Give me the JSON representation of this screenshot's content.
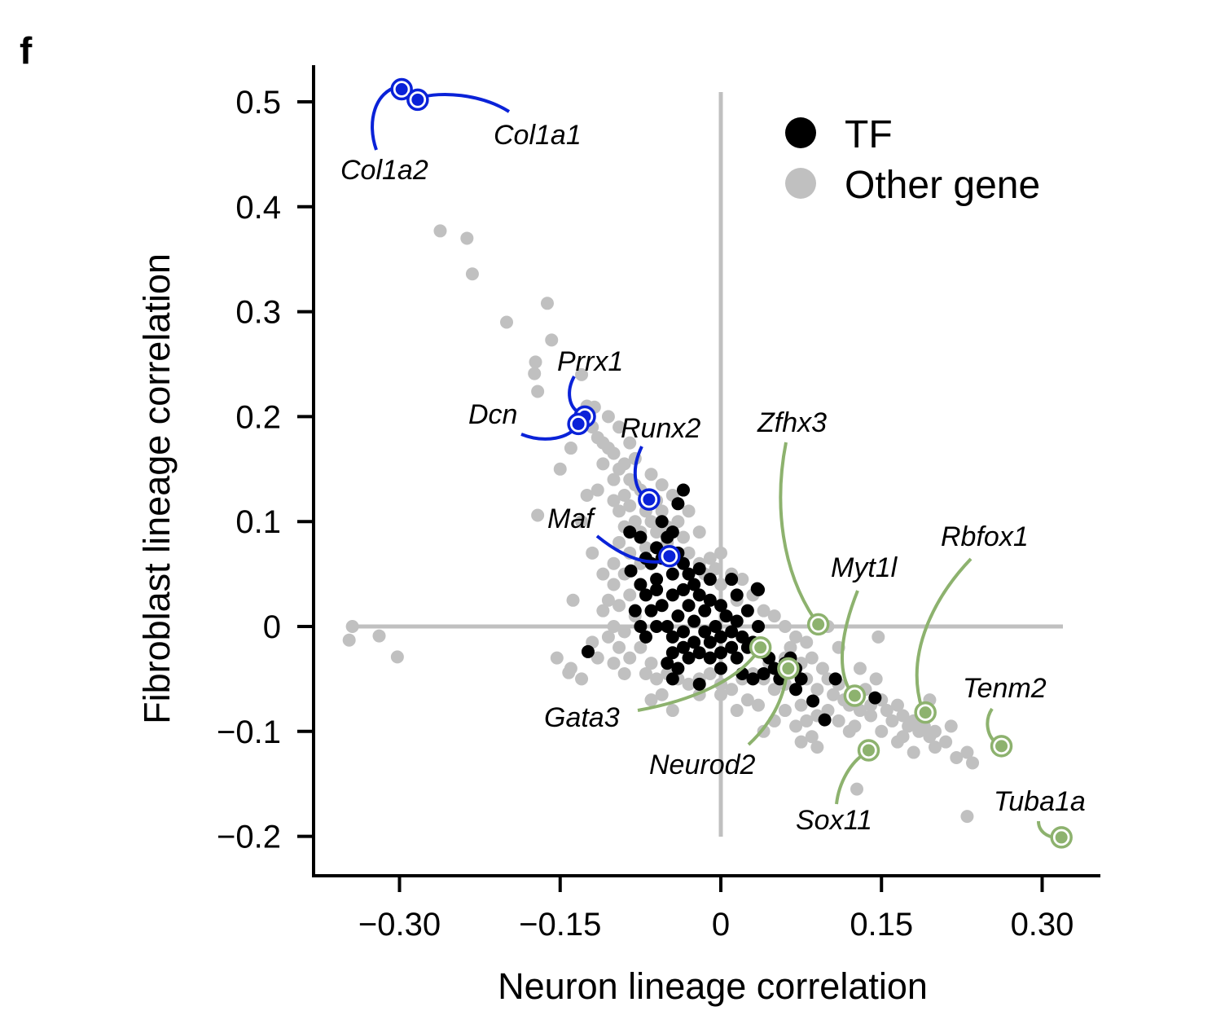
{
  "panel_letter": "f",
  "chart_data": {
    "type": "scatter",
    "xlabel": "Neuron lineage correlation",
    "ylabel": "Fibroblast lineage correlation",
    "xlim": [
      -0.365,
      0.355
    ],
    "ylim": [
      -0.235,
      0.535
    ],
    "xticks": [
      -0.3,
      -0.15,
      0,
      0.15,
      0.3
    ],
    "xtick_labels": [
      "−0.30",
      "−0.15",
      "0",
      "0.15",
      "0.30"
    ],
    "yticks": [
      0.5,
      0.4,
      0.3,
      0.2,
      0.1,
      0,
      -0.1,
      -0.2
    ],
    "ytick_labels": [
      "0.5",
      "0.4",
      "0.3",
      "0.2",
      "0.1",
      "0",
      "−0.1",
      "−0.2"
    ],
    "reference_lines": {
      "x": 0,
      "y": 0
    },
    "grid": false,
    "legend": {
      "placement": "top-right",
      "entries": [
        {
          "label": "TF",
          "color": "#000000"
        },
        {
          "label": "Other gene",
          "color": "#c0c0c0"
        }
      ]
    },
    "colors": {
      "tf": "#000000",
      "other": "#c0c0c0",
      "fibroblast_highlight": "#0a22d8",
      "neuron_highlight": "#8db26e"
    },
    "series": [
      {
        "name": "Other gene",
        "points": [
          [
            -0.262,
            0.377
          ],
          [
            -0.237,
            0.37
          ],
          [
            -0.232,
            0.336
          ],
          [
            -0.2,
            0.29
          ],
          [
            -0.162,
            0.308
          ],
          [
            -0.158,
            0.273
          ],
          [
            -0.173,
            0.252
          ],
          [
            -0.174,
            0.241
          ],
          [
            -0.171,
            0.224
          ],
          [
            -0.13,
            0.24
          ],
          [
            -0.118,
            0.209
          ],
          [
            -0.171,
            0.106
          ],
          [
            -0.138,
            0.025
          ],
          [
            -0.344,
            0.0
          ],
          [
            -0.347,
            -0.013
          ],
          [
            -0.319,
            -0.009
          ],
          [
            -0.302,
            -0.029
          ],
          [
            -0.153,
            -0.03
          ],
          [
            -0.142,
            -0.044
          ],
          [
            0.147,
            -0.01
          ],
          [
            0.127,
            -0.155
          ],
          [
            0.23,
            -0.181
          ],
          [
            -0.125,
            0.21
          ],
          [
            -0.12,
            0.19
          ],
          [
            -0.115,
            0.18
          ],
          [
            -0.11,
            0.175
          ],
          [
            -0.105,
            0.17
          ],
          [
            -0.1,
            0.165
          ],
          [
            -0.11,
            0.155
          ],
          [
            -0.095,
            0.15
          ],
          [
            -0.09,
            0.155
          ],
          [
            -0.1,
            0.14
          ],
          [
            -0.085,
            0.14
          ],
          [
            -0.08,
            0.135
          ],
          [
            -0.09,
            0.125
          ],
          [
            -0.075,
            0.13
          ],
          [
            -0.1,
            0.12
          ],
          [
            -0.095,
            0.11
          ],
          [
            -0.085,
            0.115
          ],
          [
            -0.07,
            0.11
          ],
          [
            -0.06,
            0.12
          ],
          [
            -0.055,
            0.11
          ],
          [
            -0.065,
            0.1
          ],
          [
            -0.08,
            0.1
          ],
          [
            -0.09,
            0.095
          ],
          [
            -0.075,
            0.09
          ],
          [
            -0.06,
            0.09
          ],
          [
            -0.05,
            0.095
          ],
          [
            -0.04,
            0.1
          ],
          [
            -0.035,
            0.085
          ],
          [
            -0.05,
            0.08
          ],
          [
            -0.07,
            0.075
          ],
          [
            -0.085,
            0.07
          ],
          [
            -0.095,
            0.08
          ],
          [
            -0.1,
            0.06
          ],
          [
            -0.09,
            0.05
          ],
          [
            -0.075,
            0.06
          ],
          [
            -0.03,
            0.07
          ],
          [
            -0.02,
            0.06
          ],
          [
            -0.015,
            0.05
          ],
          [
            -0.01,
            0.065
          ],
          [
            -0.005,
            0.055
          ],
          [
            0.0,
            0.04
          ],
          [
            0.01,
            0.05
          ],
          [
            0.02,
            0.045
          ],
          [
            0.03,
            0.03
          ],
          [
            -0.1,
            0.04
          ],
          [
            -0.105,
            0.025
          ],
          [
            -0.11,
            0.015
          ],
          [
            -0.095,
            0.02
          ],
          [
            -0.085,
            0.03
          ],
          [
            -0.1,
            0.0
          ],
          [
            -0.09,
            -0.005
          ],
          [
            -0.08,
            0.01
          ],
          [
            -0.105,
            -0.01
          ],
          [
            -0.095,
            -0.02
          ],
          [
            -0.085,
            -0.03
          ],
          [
            -0.075,
            -0.02
          ],
          [
            -0.065,
            -0.035
          ],
          [
            -0.1,
            -0.035
          ],
          [
            -0.09,
            -0.045
          ],
          [
            -0.07,
            -0.045
          ],
          [
            -0.06,
            -0.05
          ],
          [
            -0.05,
            -0.045
          ],
          [
            -0.12,
            -0.015
          ],
          [
            -0.115,
            -0.03
          ],
          [
            -0.04,
            -0.05
          ],
          [
            -0.03,
            -0.055
          ],
          [
            -0.02,
            -0.05
          ],
          [
            -0.01,
            -0.045
          ],
          [
            0.0,
            -0.055
          ],
          [
            0.01,
            -0.06
          ],
          [
            0.02,
            -0.05
          ],
          [
            0.03,
            -0.045
          ],
          [
            0.04,
            -0.05
          ],
          [
            0.05,
            -0.06
          ],
          [
            0.06,
            -0.055
          ],
          [
            0.07,
            -0.06
          ],
          [
            0.08,
            -0.05
          ],
          [
            0.09,
            -0.06
          ],
          [
            0.045,
            -0.035
          ],
          [
            0.06,
            -0.03
          ],
          [
            0.075,
            -0.035
          ],
          [
            0.085,
            -0.03
          ],
          [
            0.095,
            -0.04
          ],
          [
            0.1,
            -0.05
          ],
          [
            0.105,
            -0.065
          ],
          [
            0.11,
            -0.055
          ],
          [
            0.115,
            -0.07
          ],
          [
            0.1,
            -0.08
          ],
          [
            0.09,
            -0.085
          ],
          [
            0.08,
            -0.09
          ],
          [
            0.07,
            -0.095
          ],
          [
            0.075,
            -0.075
          ],
          [
            0.12,
            -0.075
          ],
          [
            0.13,
            -0.08
          ],
          [
            0.14,
            -0.085
          ],
          [
            0.135,
            -0.06
          ],
          [
            0.145,
            -0.05
          ],
          [
            0.15,
            -0.07
          ],
          [
            0.155,
            -0.08
          ],
          [
            0.16,
            -0.09
          ],
          [
            0.165,
            -0.075
          ],
          [
            0.17,
            -0.085
          ],
          [
            0.175,
            -0.095
          ],
          [
            0.18,
            -0.09
          ],
          [
            0.185,
            -0.1
          ],
          [
            0.19,
            -0.095
          ],
          [
            0.195,
            -0.105
          ],
          [
            0.2,
            -0.1
          ],
          [
            0.195,
            -0.07
          ],
          [
            0.2,
            -0.115
          ],
          [
            0.21,
            -0.11
          ],
          [
            0.22,
            -0.125
          ],
          [
            0.23,
            -0.12
          ],
          [
            0.235,
            -0.13
          ],
          [
            0.215,
            -0.095
          ],
          [
            0.12,
            -0.1
          ],
          [
            0.125,
            -0.095
          ],
          [
            0.11,
            -0.09
          ],
          [
            0.15,
            -0.1
          ],
          [
            0.165,
            -0.11
          ],
          [
            0.025,
            -0.07
          ],
          [
            0.035,
            -0.075
          ],
          [
            0.015,
            -0.08
          ],
          [
            0.0,
            -0.065
          ],
          [
            -0.055,
            -0.065
          ],
          [
            -0.045,
            -0.08
          ],
          [
            -0.065,
            -0.07
          ],
          [
            0.05,
            0.01
          ],
          [
            0.06,
            0.0
          ],
          [
            0.04,
            0.015
          ],
          [
            0.07,
            -0.01
          ],
          [
            0.08,
            -0.015
          ],
          [
            0.065,
            -0.02
          ],
          [
            -0.11,
            0.05
          ],
          [
            -0.12,
            0.07
          ],
          [
            -0.13,
            0.1
          ],
          [
            -0.125,
            0.125
          ],
          [
            -0.115,
            0.13
          ],
          [
            -0.105,
            0.2
          ],
          [
            -0.095,
            0.19
          ],
          [
            -0.085,
            0.175
          ],
          [
            -0.08,
            0.16
          ],
          [
            -0.14,
            0.17
          ],
          [
            -0.15,
            0.15
          ],
          [
            -0.065,
            0.145
          ],
          [
            -0.055,
            0.135
          ],
          [
            -0.045,
            0.125
          ],
          [
            -0.03,
            0.11
          ],
          [
            -0.02,
            0.09
          ],
          [
            0.0,
            0.07
          ],
          [
            0.015,
            0.025
          ],
          [
            0.11,
            -0.02
          ],
          [
            0.1,
            0.0
          ],
          [
            0.13,
            -0.04
          ],
          [
            0.14,
            -0.075
          ],
          [
            0.06,
            -0.08
          ],
          [
            0.05,
            -0.09
          ],
          [
            0.04,
            -0.1
          ],
          [
            0.075,
            -0.11
          ],
          [
            0.18,
            -0.12
          ],
          [
            0.17,
            -0.105
          ],
          [
            0.085,
            -0.105
          ],
          [
            0.09,
            -0.115
          ],
          [
            -0.02,
            -0.065
          ],
          [
            -0.14,
            -0.04
          ],
          [
            -0.13,
            -0.05
          ]
        ]
      },
      {
        "name": "TF",
        "points": [
          [
            -0.045,
            0.09
          ],
          [
            -0.055,
            0.1
          ],
          [
            -0.05,
            0.085
          ],
          [
            -0.06,
            0.075
          ],
          [
            -0.065,
            0.06
          ],
          [
            -0.055,
            0.065
          ],
          [
            -0.04,
            0.07
          ],
          [
            -0.035,
            0.06
          ],
          [
            -0.03,
            0.05
          ],
          [
            -0.045,
            0.05
          ],
          [
            -0.06,
            0.045
          ],
          [
            -0.07,
            0.03
          ],
          [
            -0.065,
            0.015
          ],
          [
            -0.06,
            0.0
          ],
          [
            -0.07,
            -0.01
          ],
          [
            -0.055,
            0.02
          ],
          [
            -0.045,
            0.03
          ],
          [
            -0.035,
            0.035
          ],
          [
            -0.025,
            0.04
          ],
          [
            -0.02,
            0.03
          ],
          [
            -0.03,
            0.02
          ],
          [
            -0.04,
            0.01
          ],
          [
            -0.05,
            0.0
          ],
          [
            -0.045,
            -0.01
          ],
          [
            -0.035,
            -0.005
          ],
          [
            -0.025,
            0.005
          ],
          [
            -0.015,
            0.015
          ],
          [
            -0.01,
            0.025
          ],
          [
            0.0,
            0.02
          ],
          [
            0.005,
            0.01
          ],
          [
            -0.005,
            0.0
          ],
          [
            -0.015,
            -0.005
          ],
          [
            -0.025,
            -0.015
          ],
          [
            -0.035,
            -0.02
          ],
          [
            -0.045,
            -0.025
          ],
          [
            -0.05,
            -0.035
          ],
          [
            -0.04,
            -0.04
          ],
          [
            -0.03,
            -0.03
          ],
          [
            -0.02,
            -0.025
          ],
          [
            -0.01,
            -0.015
          ],
          [
            0.0,
            -0.01
          ],
          [
            0.01,
            -0.005
          ],
          [
            0.015,
            0.005
          ],
          [
            0.02,
            -0.01
          ],
          [
            0.025,
            -0.02
          ],
          [
            0.01,
            -0.02
          ],
          [
            0.0,
            -0.025
          ],
          [
            -0.01,
            -0.03
          ],
          [
            0.015,
            -0.03
          ],
          [
            0.03,
            -0.015
          ],
          [
            0.035,
            0.0
          ],
          [
            0.04,
            -0.025
          ],
          [
            0.045,
            -0.03
          ],
          [
            0.05,
            -0.04
          ],
          [
            0.055,
            -0.05
          ],
          [
            0.04,
            -0.045
          ],
          [
            0.03,
            -0.05
          ],
          [
            0.02,
            -0.045
          ],
          [
            0.06,
            -0.035
          ],
          [
            0.07,
            -0.04
          ],
          [
            0.075,
            -0.05
          ],
          [
            0.07,
            -0.06
          ],
          [
            0.065,
            -0.03
          ],
          [
            0.035,
            0.035
          ],
          [
            0.01,
            0.045
          ],
          [
            -0.02,
            0.055
          ],
          [
            -0.01,
            0.045
          ],
          [
            -0.075,
            0.04
          ],
          [
            -0.08,
            0.015
          ],
          [
            -0.07,
            0.065
          ],
          [
            -0.075,
            0.085
          ],
          [
            -0.085,
            0.09
          ],
          [
            -0.035,
            0.13
          ],
          [
            -0.04,
            0.117
          ],
          [
            -0.084,
            0.053
          ],
          [
            -0.124,
            -0.024
          ],
          [
            0.086,
            -0.071
          ],
          [
            0.097,
            -0.089
          ],
          [
            0.144,
            -0.068
          ],
          [
            0.034,
            0.036
          ],
          [
            0.107,
            -0.05
          ],
          [
            -0.045,
            -0.05
          ],
          [
            -0.02,
            -0.055
          ],
          [
            0.0,
            -0.04
          ],
          [
            -0.075,
            0.0
          ],
          [
            0.015,
            0.03
          ],
          [
            0.025,
            0.015
          ],
          [
            -0.06,
            0.035
          ]
        ]
      }
    ],
    "highlighted_genes": [
      {
        "gene": "Col1a2",
        "x": -0.298,
        "y": 0.512,
        "group": "fibroblast"
      },
      {
        "gene": "Col1a1",
        "x": -0.283,
        "y": 0.502,
        "group": "fibroblast"
      },
      {
        "gene": "Prrx1",
        "x": -0.127,
        "y": 0.2,
        "group": "fibroblast"
      },
      {
        "gene": "Dcn",
        "x": -0.133,
        "y": 0.193,
        "group": "fibroblast"
      },
      {
        "gene": "Runx2",
        "x": -0.067,
        "y": 0.121,
        "group": "fibroblast"
      },
      {
        "gene": "Maf",
        "x": -0.048,
        "y": 0.067,
        "group": "fibroblast"
      },
      {
        "gene": "Zfhx3",
        "x": 0.091,
        "y": 0.002,
        "group": "neuron"
      },
      {
        "gene": "Gata3",
        "x": 0.037,
        "y": -0.02,
        "group": "neuron"
      },
      {
        "gene": "Neurod2",
        "x": 0.063,
        "y": -0.04,
        "group": "neuron"
      },
      {
        "gene": "Myt1l",
        "x": 0.125,
        "y": -0.066,
        "group": "neuron"
      },
      {
        "gene": "Rbfox1",
        "x": 0.191,
        "y": -0.082,
        "group": "neuron"
      },
      {
        "gene": "Sox11",
        "x": 0.138,
        "y": -0.118,
        "group": "neuron"
      },
      {
        "gene": "Tenm2",
        "x": 0.262,
        "y": -0.114,
        "group": "neuron"
      },
      {
        "gene": "Tuba1a",
        "x": 0.318,
        "y": -0.201,
        "group": "neuron"
      }
    ]
  }
}
